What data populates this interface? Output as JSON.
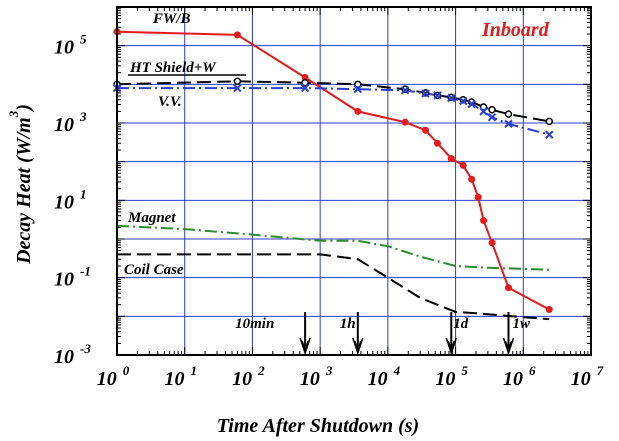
{
  "chart_data": {
    "type": "line",
    "title": "",
    "inset_label": "Inboard",
    "xlabel": "Time After Shutdown (s)",
    "ylabel": "Decay Heat (W/m",
    "ylabel_superscript": "3",
    "ylabel_close": ")",
    "x_scale": "log",
    "y_scale": "log",
    "xlim": [
      1,
      10000000
    ],
    "ylim": [
      0.001,
      1000000
    ],
    "x_ticks": [
      {
        "base": "10",
        "exp": "0"
      },
      {
        "base": "10",
        "exp": "1"
      },
      {
        "base": "10",
        "exp": "2"
      },
      {
        "base": "10",
        "exp": "3"
      },
      {
        "base": "10",
        "exp": "4"
      },
      {
        "base": "10",
        "exp": "5"
      },
      {
        "base": "10",
        "exp": "6"
      },
      {
        "base": "10",
        "exp": "7"
      }
    ],
    "y_ticks": [
      {
        "base": "10",
        "exp": "-3"
      },
      {
        "base": "10",
        "exp": "-1"
      },
      {
        "base": "10",
        "exp": "1"
      },
      {
        "base": "10",
        "exp": "3"
      },
      {
        "base": "10",
        "exp": "5"
      }
    ],
    "grid": true,
    "series": [
      {
        "name": "FW/B",
        "color": "#e41a1c",
        "style": "solid",
        "marker": "filled-circle",
        "x": [
          1,
          60,
          600,
          3600,
          18000,
          36000,
          54000,
          86400,
          129600,
          172800,
          216000,
          259200,
          345600,
          604800,
          2419200
        ],
        "y": [
          230000,
          190000,
          15000,
          2000,
          1050,
          650,
          300,
          120,
          80,
          35,
          12,
          3,
          0.8,
          0.055,
          0.015
        ]
      },
      {
        "name": "HT Shield+W",
        "color": "#000000",
        "style": "dashed",
        "marker": "open-circle",
        "x": [
          1,
          60,
          600,
          3600,
          18000,
          36000,
          54000,
          86400,
          129600,
          172800,
          259200,
          345600,
          604800,
          2419200
        ],
        "y": [
          10000,
          12000,
          11000,
          10000,
          7500,
          6000,
          5200,
          4600,
          4000,
          3500,
          2600,
          2200,
          1700,
          1100
        ]
      },
      {
        "name": "V.V.",
        "color": "#2b3fd6",
        "style": "dash-dot",
        "marker": "x",
        "x": [
          1,
          60,
          600,
          3600,
          18000,
          36000,
          54000,
          86400,
          129600,
          172800,
          259200,
          345600,
          604800,
          2419200
        ],
        "y": [
          8000,
          8000,
          8000,
          7500,
          7000,
          5800,
          5200,
          4400,
          3700,
          3100,
          2000,
          1400,
          950,
          500
        ]
      },
      {
        "name": "Magnet",
        "color": "#2e8b2e",
        "style": "dash-dot",
        "marker": "none",
        "x": [
          1,
          10,
          100,
          1000,
          3600,
          10000,
          30000,
          100000,
          300000,
          1000000,
          2419200
        ],
        "y": [
          2.2,
          1.8,
          1.3,
          0.9,
          0.9,
          0.65,
          0.35,
          0.2,
          0.18,
          0.17,
          0.16
        ]
      },
      {
        "name": "Coil Case",
        "color": "#000000",
        "style": "dashed",
        "marker": "none",
        "x": [
          1,
          10,
          100,
          1000,
          3600,
          10000,
          30000,
          100000,
          200000,
          1000000,
          2419200
        ],
        "y": [
          0.4,
          0.4,
          0.4,
          0.4,
          0.3,
          0.1,
          0.03,
          0.013,
          0.012,
          0.0095,
          0.0085
        ]
      }
    ],
    "annotations": [
      {
        "label": "10min",
        "x": 600
      },
      {
        "label": "1h",
        "x": 3600
      },
      {
        "label": "1d",
        "x": 86400
      },
      {
        "label": "1w",
        "x": 604800
      }
    ]
  }
}
